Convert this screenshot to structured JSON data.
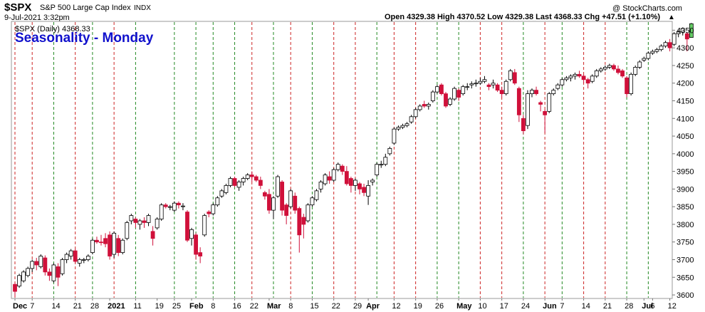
{
  "header": {
    "symbol": "$SPX",
    "name": "S&P 500 Large Cap Index",
    "exchange": "INDX",
    "date_time": "9-Jul-2021 3:32pm",
    "ohlc": "Open 4329.38  High 4370.52  Low 4329.38  Last 4368.33  Chg +47.51 (+1.10%)",
    "chg_arrow": "▲",
    "watermark": "@ StockCharts.com",
    "series_label": "$SPX (Daily) 4368.33"
  },
  "overlay": {
    "title": "Seasonality - Monday"
  },
  "colors": {
    "up": "#ffffff",
    "down": "#d0103a",
    "last_up": "#66cc66",
    "red_line": "#cc2222",
    "green_line": "#228822",
    "title": "#1111cc"
  },
  "chart_data": {
    "type": "candlestick",
    "title": "Seasonality - Monday",
    "ylim": [
      3590,
      4375
    ],
    "y_ticks": [
      3600,
      3650,
      3700,
      3750,
      3800,
      3850,
      3900,
      3950,
      4000,
      4050,
      4100,
      4150,
      4200,
      4250,
      4300,
      4350
    ],
    "x_labels": [
      {
        "i": 0,
        "label": "Dec",
        "bold": true
      },
      {
        "i": 4,
        "label": "7"
      },
      {
        "i": 9,
        "label": "14"
      },
      {
        "i": 14,
        "label": "21"
      },
      {
        "i": 18,
        "label": "28"
      },
      {
        "i": 22,
        "label": "2021",
        "bold": true
      },
      {
        "i": 28,
        "label": "11"
      },
      {
        "i": 33,
        "label": "19"
      },
      {
        "i": 37,
        "label": "25"
      },
      {
        "i": 41,
        "label": "Feb",
        "bold": true
      },
      {
        "i": 46,
        "label": "8"
      },
      {
        "i": 51,
        "label": "16"
      },
      {
        "i": 55,
        "label": "22"
      },
      {
        "i": 59,
        "label": "Mar",
        "bold": true
      },
      {
        "i": 64,
        "label": "8"
      },
      {
        "i": 69,
        "label": "15"
      },
      {
        "i": 74,
        "label": "22"
      },
      {
        "i": 79,
        "label": "29"
      },
      {
        "i": 82,
        "label": "Apr",
        "bold": true
      },
      {
        "i": 88,
        "label": "12"
      },
      {
        "i": 93,
        "label": "19"
      },
      {
        "i": 98,
        "label": "26"
      },
      {
        "i": 103,
        "label": "May",
        "bold": true
      },
      {
        "i": 108,
        "label": "10"
      },
      {
        "i": 113,
        "label": "17"
      },
      {
        "i": 118,
        "label": "24"
      },
      {
        "i": 123,
        "label": "Jun",
        "bold": true
      },
      {
        "i": 127,
        "label": "7"
      },
      {
        "i": 132,
        "label": "14"
      },
      {
        "i": 137,
        "label": "21"
      },
      {
        "i": 142,
        "label": "28"
      },
      {
        "i": 146,
        "label": "Jul",
        "bold": true
      },
      {
        "i": 148,
        "label": "6"
      },
      {
        "i": 152,
        "label": "12"
      }
    ],
    "monday_lines": [
      {
        "i": 0,
        "color": "red"
      },
      {
        "i": 4,
        "color": "red"
      },
      {
        "i": 9,
        "color": "green"
      },
      {
        "i": 14,
        "color": "red"
      },
      {
        "i": 18,
        "color": "green"
      },
      {
        "i": 23,
        "color": "red"
      },
      {
        "i": 28,
        "color": "green"
      },
      {
        "i": 37,
        "color": "green"
      },
      {
        "i": 42,
        "color": "green"
      },
      {
        "i": 46,
        "color": "green"
      },
      {
        "i": 51,
        "color": "green"
      },
      {
        "i": 55,
        "color": "red"
      },
      {
        "i": 60,
        "color": "green"
      },
      {
        "i": 64,
        "color": "red"
      },
      {
        "i": 69,
        "color": "green"
      },
      {
        "i": 74,
        "color": "red"
      },
      {
        "i": 79,
        "color": "red"
      },
      {
        "i": 84,
        "color": "green"
      },
      {
        "i": 88,
        "color": "red"
      },
      {
        "i": 93,
        "color": "red"
      },
      {
        "i": 98,
        "color": "green"
      },
      {
        "i": 103,
        "color": "green"
      },
      {
        "i": 108,
        "color": "red"
      },
      {
        "i": 113,
        "color": "red"
      },
      {
        "i": 118,
        "color": "green"
      },
      {
        "i": 123,
        "color": "red"
      },
      {
        "i": 127,
        "color": "green"
      },
      {
        "i": 132,
        "color": "red"
      },
      {
        "i": 137,
        "color": "red"
      },
      {
        "i": 142,
        "color": "green"
      },
      {
        "i": 147,
        "color": "green"
      }
    ],
    "candles": [
      {
        "o": 3630,
        "h": 3635,
        "l": 3595,
        "c": 3610
      },
      {
        "o": 3625,
        "h": 3660,
        "l": 3620,
        "c": 3655
      },
      {
        "o": 3640,
        "h": 3670,
        "l": 3635,
        "c": 3665
      },
      {
        "o": 3655,
        "h": 3680,
        "l": 3650,
        "c": 3675
      },
      {
        "o": 3675,
        "h": 3700,
        "l": 3665,
        "c": 3695
      },
      {
        "o": 3695,
        "h": 3705,
        "l": 3670,
        "c": 3685
      },
      {
        "o": 3680,
        "h": 3715,
        "l": 3675,
        "c": 3710
      },
      {
        "o": 3705,
        "h": 3712,
        "l": 3655,
        "c": 3665
      },
      {
        "o": 3665,
        "h": 3675,
        "l": 3640,
        "c": 3655
      },
      {
        "o": 3640,
        "h": 3690,
        "l": 3635,
        "c": 3685
      },
      {
        "o": 3680,
        "h": 3690,
        "l": 3625,
        "c": 3650
      },
      {
        "o": 3660,
        "h": 3705,
        "l": 3655,
        "c": 3700
      },
      {
        "o": 3700,
        "h": 3720,
        "l": 3690,
        "c": 3715
      },
      {
        "o": 3710,
        "h": 3730,
        "l": 3700,
        "c": 3725
      },
      {
        "o": 3725,
        "h": 3730,
        "l": 3690,
        "c": 3695
      },
      {
        "o": 3690,
        "h": 3705,
        "l": 3680,
        "c": 3700
      },
      {
        "o": 3700,
        "h": 3705,
        "l": 3690,
        "c": 3700
      },
      {
        "o": 3700,
        "h": 3715,
        "l": 3695,
        "c": 3710
      },
      {
        "o": 3720,
        "h": 3760,
        "l": 3715,
        "c": 3755
      },
      {
        "o": 3755,
        "h": 3765,
        "l": 3745,
        "c": 3750
      },
      {
        "o": 3750,
        "h": 3770,
        "l": 3740,
        "c": 3748
      },
      {
        "o": 3760,
        "h": 3775,
        "l": 3735,
        "c": 3745
      },
      {
        "o": 3770,
        "h": 3780,
        "l": 3700,
        "c": 3710
      },
      {
        "o": 3715,
        "h": 3780,
        "l": 3705,
        "c": 3775
      },
      {
        "o": 3760,
        "h": 3770,
        "l": 3710,
        "c": 3720
      },
      {
        "o": 3720,
        "h": 3760,
        "l": 3715,
        "c": 3755
      },
      {
        "o": 3760,
        "h": 3810,
        "l": 3755,
        "c": 3805
      },
      {
        "o": 3810,
        "h": 3830,
        "l": 3800,
        "c": 3825
      },
      {
        "o": 3815,
        "h": 3820,
        "l": 3790,
        "c": 3805
      },
      {
        "o": 3800,
        "h": 3815,
        "l": 3785,
        "c": 3810
      },
      {
        "o": 3810,
        "h": 3820,
        "l": 3790,
        "c": 3805
      },
      {
        "o": 3805,
        "h": 3830,
        "l": 3795,
        "c": 3825
      },
      {
        "o": 3780,
        "h": 3795,
        "l": 3740,
        "c": 3760
      },
      {
        "o": 3790,
        "h": 3820,
        "l": 3785,
        "c": 3815
      },
      {
        "o": 3815,
        "h": 3860,
        "l": 3810,
        "c": 3855
      },
      {
        "o": 3855,
        "h": 3860,
        "l": 3845,
        "c": 3850
      },
      {
        "o": 3850,
        "h": 3855,
        "l": 3840,
        "c": 3850
      },
      {
        "o": 3840,
        "h": 3865,
        "l": 3835,
        "c": 3860
      },
      {
        "o": 3860,
        "h": 3865,
        "l": 3845,
        "c": 3855
      },
      {
        "o": 3850,
        "h": 3860,
        "l": 3840,
        "c": 3852
      },
      {
        "o": 3835,
        "h": 3840,
        "l": 3750,
        "c": 3755
      },
      {
        "o": 3760,
        "h": 3790,
        "l": 3740,
        "c": 3785
      },
      {
        "o": 3770,
        "h": 3775,
        "l": 3700,
        "c": 3715
      },
      {
        "o": 3720,
        "h": 3735,
        "l": 3690,
        "c": 3710
      },
      {
        "o": 3770,
        "h": 3830,
        "l": 3765,
        "c": 3825
      },
      {
        "o": 3835,
        "h": 3840,
        "l": 3820,
        "c": 3830
      },
      {
        "o": 3830,
        "h": 3860,
        "l": 3825,
        "c": 3855
      },
      {
        "o": 3855,
        "h": 3880,
        "l": 3850,
        "c": 3875
      },
      {
        "o": 3880,
        "h": 3900,
        "l": 3875,
        "c": 3895
      },
      {
        "o": 3890,
        "h": 3915,
        "l": 3885,
        "c": 3910
      },
      {
        "o": 3910,
        "h": 3935,
        "l": 3905,
        "c": 3930
      },
      {
        "o": 3930,
        "h": 3935,
        "l": 3905,
        "c": 3910
      },
      {
        "o": 3905,
        "h": 3925,
        "l": 3895,
        "c": 3920
      },
      {
        "o": 3920,
        "h": 3935,
        "l": 3910,
        "c": 3930
      },
      {
        "o": 3930,
        "h": 3945,
        "l": 3925,
        "c": 3940
      },
      {
        "o": 3940,
        "h": 3950,
        "l": 3920,
        "c": 3935
      },
      {
        "o": 3935,
        "h": 3940,
        "l": 3920,
        "c": 3925
      },
      {
        "o": 3925,
        "h": 3935,
        "l": 3900,
        "c": 3910
      },
      {
        "o": 3890,
        "h": 3895,
        "l": 3870,
        "c": 3880
      },
      {
        "o": 3885,
        "h": 3900,
        "l": 3830,
        "c": 3840
      },
      {
        "o": 3840,
        "h": 3880,
        "l": 3815,
        "c": 3875
      },
      {
        "o": 3880,
        "h": 3940,
        "l": 3875,
        "c": 3935
      },
      {
        "o": 3920,
        "h": 3925,
        "l": 3825,
        "c": 3840
      },
      {
        "o": 3855,
        "h": 3860,
        "l": 3800,
        "c": 3825
      },
      {
        "o": 3850,
        "h": 3900,
        "l": 3845,
        "c": 3895
      },
      {
        "o": 3880,
        "h": 3890,
        "l": 3830,
        "c": 3840
      },
      {
        "o": 3845,
        "h": 3850,
        "l": 3720,
        "c": 3770
      },
      {
        "o": 3820,
        "h": 3830,
        "l": 3760,
        "c": 3800
      },
      {
        "o": 3810,
        "h": 3860,
        "l": 3805,
        "c": 3855
      },
      {
        "o": 3855,
        "h": 3880,
        "l": 3850,
        "c": 3875
      },
      {
        "o": 3870,
        "h": 3900,
        "l": 3865,
        "c": 3895
      },
      {
        "o": 3900,
        "h": 3925,
        "l": 3890,
        "c": 3920
      },
      {
        "o": 3915,
        "h": 3945,
        "l": 3910,
        "c": 3940
      },
      {
        "o": 3935,
        "h": 3950,
        "l": 3915,
        "c": 3925
      },
      {
        "o": 3925,
        "h": 3960,
        "l": 3920,
        "c": 3955
      },
      {
        "o": 3955,
        "h": 3975,
        "l": 3950,
        "c": 3970
      },
      {
        "o": 3965,
        "h": 3970,
        "l": 3940,
        "c": 3950
      },
      {
        "o": 3950,
        "h": 3965,
        "l": 3910,
        "c": 3915
      },
      {
        "o": 3930,
        "h": 3935,
        "l": 3890,
        "c": 3910
      },
      {
        "o": 3910,
        "h": 3930,
        "l": 3895,
        "c": 3925
      },
      {
        "o": 3915,
        "h": 3920,
        "l": 3885,
        "c": 3900
      },
      {
        "o": 3905,
        "h": 3915,
        "l": 3880,
        "c": 3890
      },
      {
        "o": 3880,
        "h": 3925,
        "l": 3855,
        "c": 3910
      },
      {
        "o": 3920,
        "h": 3930,
        "l": 3910,
        "c": 3925
      },
      {
        "o": 3940,
        "h": 3975,
        "l": 3935,
        "c": 3970
      },
      {
        "o": 3970,
        "h": 3980,
        "l": 3960,
        "c": 3970
      },
      {
        "o": 3970,
        "h": 4000,
        "l": 3965,
        "c": 3990
      },
      {
        "o": 4000,
        "h": 4020,
        "l": 3995,
        "c": 4015
      },
      {
        "o": 4030,
        "h": 4075,
        "l": 4025,
        "c": 4070
      },
      {
        "o": 4070,
        "h": 4080,
        "l": 4065,
        "c": 4075
      },
      {
        "o": 4075,
        "h": 4085,
        "l": 4070,
        "c": 4080
      },
      {
        "o": 4080,
        "h": 4090,
        "l": 4075,
        "c": 4085
      },
      {
        "o": 4090,
        "h": 4110,
        "l": 4085,
        "c": 4105
      },
      {
        "o": 4105,
        "h": 4130,
        "l": 4100,
        "c": 4125
      },
      {
        "o": 4125,
        "h": 4140,
        "l": 4120,
        "c": 4135
      },
      {
        "o": 4140,
        "h": 4150,
        "l": 4130,
        "c": 4135
      },
      {
        "o": 4135,
        "h": 4145,
        "l": 4125,
        "c": 4140
      },
      {
        "o": 4150,
        "h": 4180,
        "l": 4145,
        "c": 4175
      },
      {
        "o": 4175,
        "h": 4195,
        "l": 4170,
        "c": 4190
      },
      {
        "o": 4195,
        "h": 4200,
        "l": 4165,
        "c": 4170
      },
      {
        "o": 4170,
        "h": 4175,
        "l": 4130,
        "c": 4135
      },
      {
        "o": 4140,
        "h": 4160,
        "l": 4135,
        "c": 4155
      },
      {
        "o": 4155,
        "h": 4190,
        "l": 4150,
        "c": 4185
      },
      {
        "o": 4180,
        "h": 4185,
        "l": 4150,
        "c": 4160
      },
      {
        "o": 4170,
        "h": 4195,
        "l": 4165,
        "c": 4190
      },
      {
        "o": 4190,
        "h": 4200,
        "l": 4180,
        "c": 4190
      },
      {
        "o": 4195,
        "h": 4205,
        "l": 4185,
        "c": 4198
      },
      {
        "o": 4200,
        "h": 4210,
        "l": 4190,
        "c": 4200
      },
      {
        "o": 4200,
        "h": 4215,
        "l": 4195,
        "c": 4205
      },
      {
        "o": 4205,
        "h": 4220,
        "l": 4200,
        "c": 4210
      },
      {
        "o": 4195,
        "h": 4200,
        "l": 4180,
        "c": 4190
      },
      {
        "o": 4195,
        "h": 4210,
        "l": 4185,
        "c": 4200
      },
      {
        "o": 4195,
        "h": 4200,
        "l": 4175,
        "c": 4180
      },
      {
        "o": 4180,
        "h": 4190,
        "l": 4160,
        "c": 4170
      },
      {
        "o": 4170,
        "h": 4210,
        "l": 4165,
        "c": 4205
      },
      {
        "o": 4210,
        "h": 4240,
        "l": 4205,
        "c": 4235
      },
      {
        "o": 4230,
        "h": 4240,
        "l": 4195,
        "c": 4200
      },
      {
        "o": 4185,
        "h": 4190,
        "l": 4090,
        "c": 4110
      },
      {
        "o": 4100,
        "h": 4110,
        "l": 4055,
        "c": 4065
      },
      {
        "o": 4080,
        "h": 4180,
        "l": 4070,
        "c": 4170
      },
      {
        "o": 4170,
        "h": 4185,
        "l": 4160,
        "c": 4180
      },
      {
        "o": 4180,
        "h": 4190,
        "l": 4165,
        "c": 4170
      },
      {
        "o": 4145,
        "h": 4150,
        "l": 4120,
        "c": 4140
      },
      {
        "o": 4120,
        "h": 4125,
        "l": 4060,
        "c": 4110
      },
      {
        "o": 4120,
        "h": 4175,
        "l": 4115,
        "c": 4170
      },
      {
        "o": 4170,
        "h": 4185,
        "l": 4165,
        "c": 4180
      },
      {
        "o": 4185,
        "h": 4200,
        "l": 4180,
        "c": 4195
      },
      {
        "o": 4195,
        "h": 4215,
        "l": 4190,
        "c": 4210
      },
      {
        "o": 4210,
        "h": 4220,
        "l": 4205,
        "c": 4215
      },
      {
        "o": 4215,
        "h": 4225,
        "l": 4205,
        "c": 4220
      },
      {
        "o": 4220,
        "h": 4230,
        "l": 4210,
        "c": 4225
      },
      {
        "o": 4225,
        "h": 4235,
        "l": 4215,
        "c": 4220
      },
      {
        "o": 4220,
        "h": 4225,
        "l": 4200,
        "c": 4210
      },
      {
        "o": 4210,
        "h": 4215,
        "l": 4185,
        "c": 4200
      },
      {
        "o": 4205,
        "h": 4225,
        "l": 4200,
        "c": 4220
      },
      {
        "o": 4220,
        "h": 4240,
        "l": 4215,
        "c": 4235
      },
      {
        "o": 4235,
        "h": 4245,
        "l": 4230,
        "c": 4240
      },
      {
        "o": 4240,
        "h": 4250,
        "l": 4235,
        "c": 4245
      },
      {
        "o": 4245,
        "h": 4255,
        "l": 4240,
        "c": 4250
      },
      {
        "o": 4250,
        "h": 4255,
        "l": 4235,
        "c": 4240
      },
      {
        "o": 4240,
        "h": 4250,
        "l": 4225,
        "c": 4230
      },
      {
        "o": 4235,
        "h": 4240,
        "l": 4215,
        "c": 4220
      },
      {
        "o": 4215,
        "h": 4220,
        "l": 4160,
        "c": 4170
      },
      {
        "o": 4170,
        "h": 4230,
        "l": 4165,
        "c": 4225
      },
      {
        "o": 4225,
        "h": 4250,
        "l": 4220,
        "c": 4245
      },
      {
        "o": 4245,
        "h": 4265,
        "l": 4240,
        "c": 4260
      },
      {
        "o": 4265,
        "h": 4275,
        "l": 4260,
        "c": 4270
      },
      {
        "o": 4270,
        "h": 4290,
        "l": 4265,
        "c": 4285
      },
      {
        "o": 4285,
        "h": 4295,
        "l": 4280,
        "c": 4290
      },
      {
        "o": 4290,
        "h": 4300,
        "l": 4285,
        "c": 4295
      },
      {
        "o": 4295,
        "h": 4310,
        "l": 4290,
        "c": 4305
      },
      {
        "o": 4305,
        "h": 4320,
        "l": 4300,
        "c": 4315
      },
      {
        "o": 4315,
        "h": 4325,
        "l": 4290,
        "c": 4300
      },
      {
        "o": 4310,
        "h": 4345,
        "l": 4305,
        "c": 4340
      },
      {
        "o": 4340,
        "h": 4350,
        "l": 4330,
        "c": 4345
      },
      {
        "o": 4345,
        "h": 4358,
        "l": 4335,
        "c": 4355
      },
      {
        "o": 4340,
        "h": 4345,
        "l": 4290,
        "c": 4325
      },
      {
        "o": 4329.38,
        "h": 4370.52,
        "l": 4329.38,
        "c": 4368.33
      }
    ]
  }
}
